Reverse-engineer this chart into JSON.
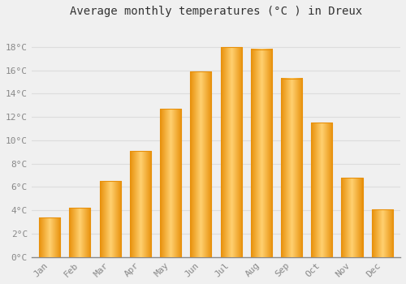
{
  "title": "Average monthly temperatures (°C ) in Dreux",
  "months": [
    "Jan",
    "Feb",
    "Mar",
    "Apr",
    "May",
    "Jun",
    "Jul",
    "Aug",
    "Sep",
    "Oct",
    "Nov",
    "Dec"
  ],
  "temperatures": [
    3.4,
    4.2,
    6.5,
    9.1,
    12.7,
    15.9,
    18.0,
    17.8,
    15.3,
    11.5,
    6.8,
    4.1
  ],
  "bar_color": "#FFA500",
  "bar_color_light": "#FFD070",
  "bar_color_dark": "#E8900A",
  "ylim": [
    0,
    20
  ],
  "yticks": [
    0,
    2,
    4,
    6,
    8,
    10,
    12,
    14,
    16,
    18
  ],
  "background_color": "#F0F0F0",
  "grid_color": "#DDDDDD",
  "title_fontsize": 10,
  "tick_fontsize": 8,
  "tick_color": "#888888",
  "bar_width": 0.7
}
